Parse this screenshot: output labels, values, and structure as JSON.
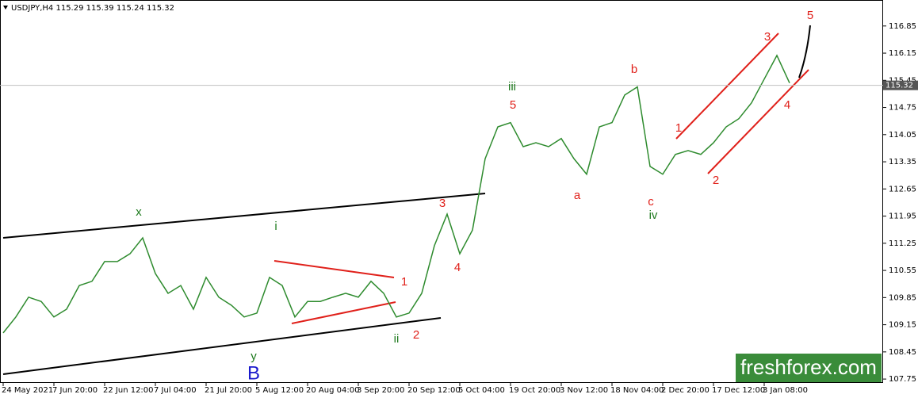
{
  "chart_data": {
    "type": "line",
    "title": "USDJPY,H4  115.29 115.39 115.24 115.32",
    "categories": [
      "24 May 2021",
      null,
      null,
      null,
      "7 Jun 20:00",
      null,
      null,
      null,
      "22 Jun 12:00",
      null,
      null,
      null,
      "7 Jul 04:00",
      null,
      null,
      null,
      "21 Jul 20:00",
      null,
      null,
      null,
      "5 Aug 12:00",
      null,
      null,
      null,
      "20 Aug 04:00",
      null,
      null,
      null,
      "3 Sep 20:00",
      null,
      null,
      null,
      "20 Sep 12:00",
      null,
      null,
      null,
      "5 Oct 04:00",
      null,
      null,
      null,
      "19 Oct 20:00",
      null,
      null,
      null,
      "3 Nov 12:00",
      null,
      null,
      null,
      "18 Nov 04:00",
      null,
      null,
      null,
      "2 Dec 20:00",
      null,
      null,
      null,
      "17 Dec 12:00",
      null,
      null,
      null,
      "3 Jan 08:00",
      null,
      null
    ],
    "values": [
      108.94,
      109.35,
      109.86,
      109.75,
      109.35,
      109.55,
      110.16,
      110.27,
      110.78,
      110.78,
      110.98,
      111.39,
      110.47,
      109.96,
      110.16,
      109.55,
      110.37,
      109.86,
      109.65,
      109.35,
      109.45,
      110.37,
      110.16,
      109.35,
      109.75,
      109.75,
      109.86,
      109.96,
      109.86,
      110.27,
      109.96,
      109.35,
      109.45,
      109.96,
      111.19,
      112.0,
      110.98,
      111.59,
      113.43,
      114.25,
      114.36,
      113.74,
      113.84,
      113.74,
      113.95,
      113.43,
      113.03,
      114.25,
      114.36,
      115.07,
      115.28,
      113.23,
      113.03,
      113.54,
      113.64,
      113.54,
      113.84,
      114.25,
      114.46,
      114.87,
      115.48,
      116.09,
      115.38
    ],
    "color": "#2e8b2e",
    "ylim": [
      107.65,
      117.52
    ],
    "yticks": [
      116.85,
      116.15,
      115.45,
      114.75,
      114.05,
      113.35,
      112.65,
      111.95,
      111.25,
      110.55,
      109.85,
      109.15,
      108.45,
      107.75
    ],
    "last_price": 115.32,
    "annotations": [
      {
        "text": "x"
      },
      {
        "text": "y"
      },
      {
        "text": "B"
      },
      {
        "text": "i"
      },
      {
        "text": "1"
      },
      {
        "text": "ii"
      },
      {
        "text": "2"
      },
      {
        "text": "3"
      },
      {
        "text": "4"
      },
      {
        "text": "iii"
      },
      {
        "text": "5"
      },
      {
        "text": "a"
      },
      {
        "text": "b"
      },
      {
        "text": "c"
      },
      {
        "text": "iv"
      },
      {
        "text": "1"
      },
      {
        "text": "2"
      },
      {
        "text": "3"
      },
      {
        "text": "4"
      },
      {
        "text": "5"
      }
    ],
    "watermark": "freshforex.com"
  }
}
